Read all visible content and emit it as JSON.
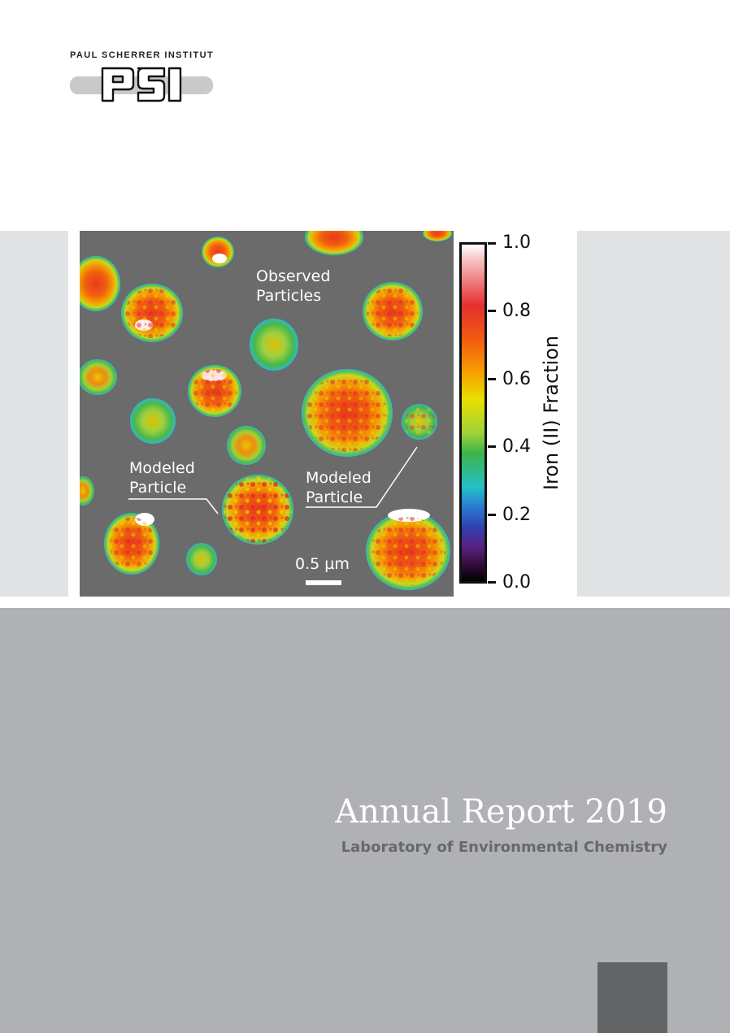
{
  "logo": {
    "institute_name": "PAUL SCHERRER INSTITUT",
    "mark": "PSI"
  },
  "figure": {
    "labels": {
      "observed": "Observed\nParticles",
      "modeled_left": "Modeled\nParticle",
      "modeled_right": "Modeled\nParticle",
      "scale_bar": "0.5 µm"
    },
    "colorbar": {
      "title": "Iron (II) Fraction",
      "ticks": [
        "1.0",
        "0.8",
        "0.6",
        "0.4",
        "0.2",
        "0.0"
      ]
    }
  },
  "cover": {
    "title": "Annual Report 2019",
    "subtitle": "Laboratory of Environmental Chemistry"
  },
  "colors": {
    "cover_background": "#b0b1b4",
    "side_panel": "#e1e2e3",
    "micrograph_background": "#6b6b6b",
    "subtitle": "#67686b",
    "corner_box": "#636466"
  }
}
